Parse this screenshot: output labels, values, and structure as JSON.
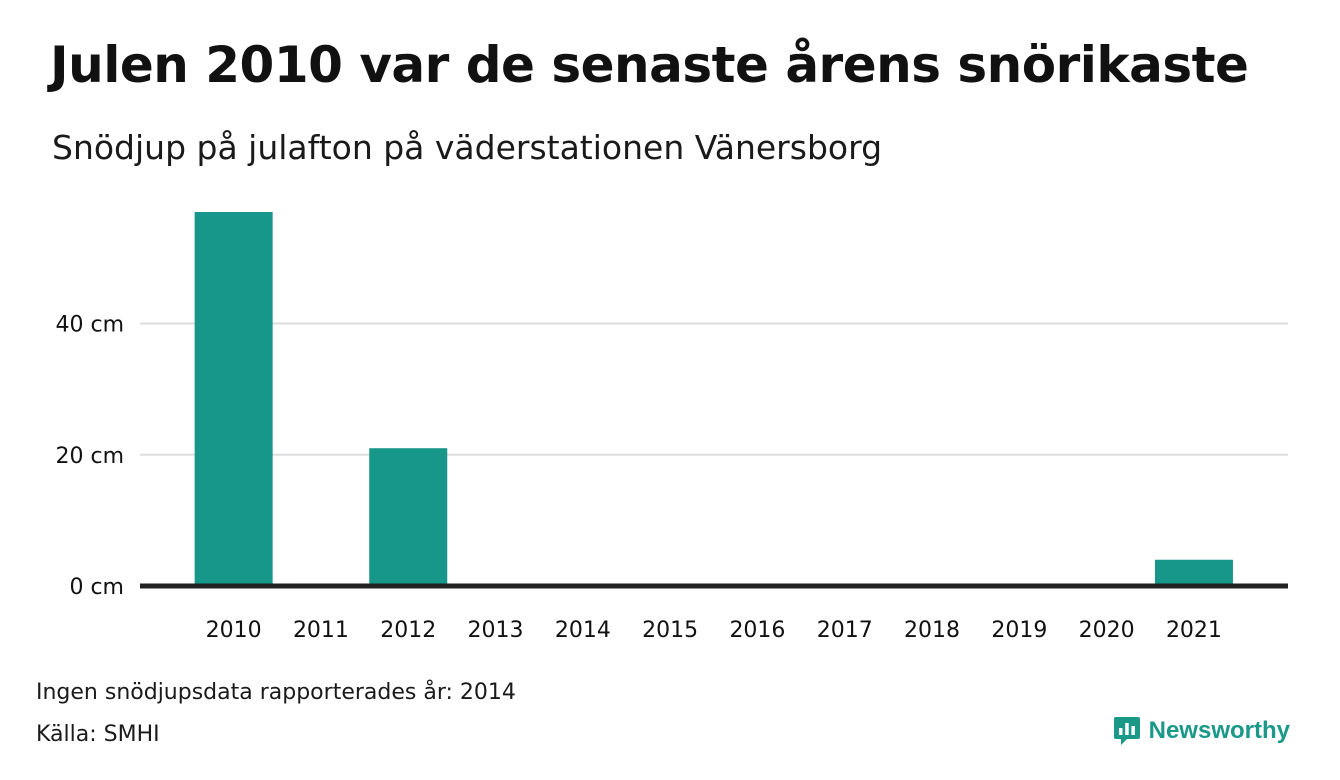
{
  "title": "Julen 2010 var de senaste årens snörikaste",
  "subtitle": "Snödjup på julafton på väderstationen Vänersborg",
  "note": "Ingen snödjupsdata rapporterades år: 2014",
  "source": "Källa: SMHI",
  "brand": {
    "name": "Newsworthy",
    "icon": "newsworthy-logo-icon",
    "color": "#1a9989"
  },
  "colors": {
    "bar": "#17968a",
    "grid": "#dddddd",
    "baseline": "#222222"
  },
  "chart_data": {
    "type": "bar",
    "categories": [
      "2010",
      "2011",
      "2012",
      "2013",
      "2014",
      "2015",
      "2016",
      "2017",
      "2018",
      "2019",
      "2020",
      "2021"
    ],
    "values": [
      57,
      0,
      21,
      0,
      null,
      0,
      0,
      0,
      0,
      0,
      0,
      4
    ],
    "y_ticks": [
      0,
      20,
      40
    ],
    "y_tick_labels": [
      "0 cm",
      "20 cm",
      "40 cm"
    ],
    "ylim": [
      0,
      57
    ],
    "grid": true,
    "legend": "none"
  }
}
